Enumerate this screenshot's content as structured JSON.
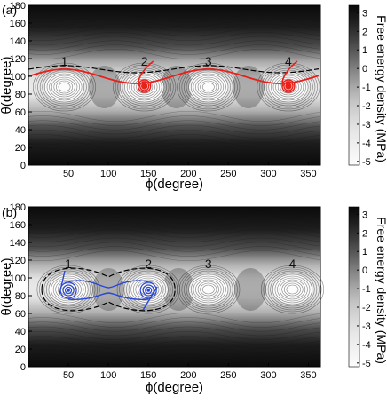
{
  "chart_data": [
    {
      "type": "heatmap",
      "panel_label": "(a)",
      "xlabel": "ϕ(degree)",
      "ylabel": "θ(degree)",
      "xlim": [
        0,
        365
      ],
      "ylim": [
        0,
        180
      ],
      "xticks": [
        "50",
        "100",
        "150",
        "200",
        "250",
        "300",
        "350"
      ],
      "yticks": [
        "0",
        "20",
        "40",
        "60",
        "80",
        "100",
        "120",
        "140",
        "160",
        "180"
      ],
      "colorbar": {
        "label": "Free energy density (MPa)",
        "ticks": [
          "3",
          "2",
          "1",
          "0",
          "-1",
          "-2",
          "-3",
          "-4",
          "-5"
        ],
        "range": [
          -5.2,
          3.4
        ]
      },
      "wells": [
        {
          "label": "1",
          "phi": 45,
          "theta": 88
        },
        {
          "label": "2",
          "phi": 145,
          "theta": 88
        },
        {
          "label": "3",
          "phi": 225,
          "theta": 88
        },
        {
          "label": "4",
          "phi": 325,
          "theta": 88
        }
      ],
      "dashed_boundary_theta": 108,
      "trajectory_color": "#e8201a",
      "trajectory_endpoints": [
        {
          "phi": 145,
          "theta": 89
        },
        {
          "phi": 325,
          "theta": 89
        }
      ]
    },
    {
      "type": "heatmap",
      "panel_label": "(b)",
      "xlabel": "ϕ(degree)",
      "ylabel": "θ(degree)",
      "xlim": [
        0,
        365
      ],
      "ylim": [
        0,
        180
      ],
      "xticks": [
        "50",
        "100",
        "150",
        "200",
        "250",
        "300",
        "350"
      ],
      "yticks": [
        "0",
        "20",
        "40",
        "60",
        "80",
        "100",
        "120",
        "140",
        "160",
        "180"
      ],
      "colorbar": {
        "label": "Free energy density (MPa)",
        "ticks": [
          "3",
          "2",
          "1",
          "0",
          "-1",
          "-2",
          "-3",
          "-4",
          "-5"
        ],
        "range": [
          -5.2,
          3.4
        ]
      },
      "wells": [
        {
          "label": "1",
          "phi": 50,
          "theta": 87
        },
        {
          "label": "2",
          "phi": 150,
          "theta": 87
        },
        {
          "label": "3",
          "phi": 225,
          "theta": 87
        },
        {
          "label": "4",
          "phi": 330,
          "theta": 87
        }
      ],
      "dashed_boundary_around_wells": [
        "1",
        "2"
      ],
      "trajectory_color": "#2846d8",
      "trajectory_endpoints": [
        {
          "phi": 50,
          "theta": 86
        },
        {
          "phi": 150,
          "theta": 86
        }
      ]
    }
  ]
}
